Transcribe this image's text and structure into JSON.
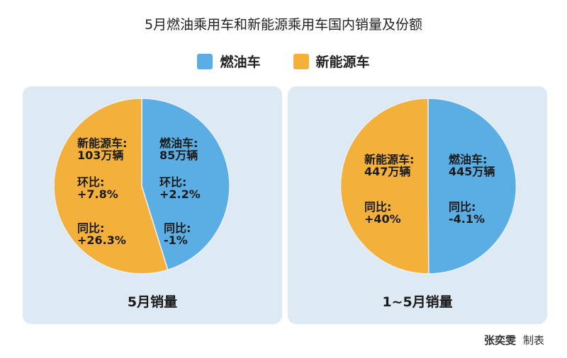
{
  "title": "5月燃油乘用车和新能源乘用车国内销量及份额",
  "legend": [
    {
      "label": "燃油车",
      "color": "#5aaee3"
    },
    {
      "label": "新能源车",
      "color": "#f3b13c"
    }
  ],
  "credit": {
    "author": "张奕雯",
    "suffix": "制表"
  },
  "chart_data": [
    {
      "type": "pie",
      "title": "5月销量",
      "unit": "万辆",
      "slices": [
        {
          "name": "燃油车",
          "value": 85,
          "color": "#5aaee3"
        },
        {
          "name": "新能源车",
          "value": 103,
          "color": "#f3b13c"
        }
      ],
      "annotations": {
        "fuel": {
          "sales": "燃油车:",
          "amount": "85万辆",
          "mom_label": "环比:",
          "mom": "+2.2%",
          "yoy_label": "同比:",
          "yoy": "-1%"
        },
        "nev": {
          "sales": "新能源车:",
          "amount": "103万辆",
          "mom_label": "环比:",
          "mom": "+7.8%",
          "yoy_label": "同比:",
          "yoy": "+26.3%"
        }
      }
    },
    {
      "type": "pie",
      "title": "1~5月销量",
      "unit": "万辆",
      "slices": [
        {
          "name": "燃油车",
          "value": 445,
          "color": "#5aaee3"
        },
        {
          "name": "新能源车",
          "value": 447,
          "color": "#f3b13c"
        }
      ],
      "annotations": {
        "fuel": {
          "sales": "燃油车:",
          "amount": "445万辆",
          "yoy_label": "同比:",
          "yoy": "-4.1%"
        },
        "nev": {
          "sales": "新能源车:",
          "amount": "447万辆",
          "yoy_label": "同比:",
          "yoy": "+40%"
        }
      }
    }
  ]
}
